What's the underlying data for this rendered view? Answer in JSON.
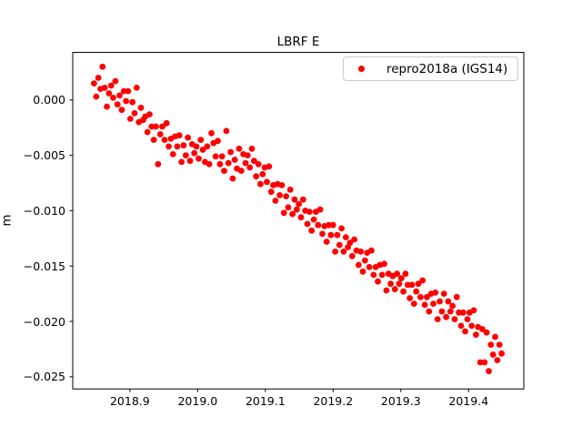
{
  "chart_data": {
    "type": "scatter",
    "title": "LBRF E",
    "xlabel": "",
    "ylabel": "m",
    "grid": false,
    "legend": {
      "position": "upper right",
      "entries": [
        {
          "label": "repro2018a (IGS14)",
          "marker": "dot",
          "color": "#ff0000"
        }
      ]
    },
    "colors": {
      "marker": "#ff0000",
      "spine": "#000000",
      "legend_border": "#cccccc",
      "background": "#ffffff"
    },
    "axis": {
      "xlim": [
        2018.8156,
        2019.4815
      ],
      "ylim": [
        -0.0261,
        0.0043
      ],
      "xticks": [
        {
          "value": 2018.9,
          "label": "2018.9"
        },
        {
          "value": 2019.0,
          "label": "2019.0"
        },
        {
          "value": 2019.1,
          "label": "2019.1"
        },
        {
          "value": 2019.2,
          "label": "2019.2"
        },
        {
          "value": 2019.3,
          "label": "2019.3"
        },
        {
          "value": 2019.4,
          "label": "2019.4"
        }
      ],
      "yticks": [
        {
          "value": 0.0,
          "label": "0.000"
        },
        {
          "value": -0.005,
          "label": "−0.005"
        },
        {
          "value": -0.01,
          "label": "−0.010"
        },
        {
          "value": -0.015,
          "label": "−0.015"
        },
        {
          "value": -0.02,
          "label": "−0.020"
        },
        {
          "value": -0.025,
          "label": "−0.025"
        }
      ]
    },
    "series": [
      {
        "name": "repro2018a (IGS14)",
        "color": "#ff0000",
        "marker_radius_px": 3.4,
        "points": [
          [
            2018.847,
            0.0015
          ],
          [
            2018.8502,
            0.0003
          ],
          [
            2018.8533,
            0.002
          ],
          [
            2018.8565,
            0.001
          ],
          [
            2018.8596,
            0.003
          ],
          [
            2018.8628,
            0.0011
          ],
          [
            2018.8659,
            -0.0006
          ],
          [
            2018.8691,
            0.0006
          ],
          [
            2018.8722,
            0.0013
          ],
          [
            2018.8754,
            0.0002
          ],
          [
            2018.8785,
            0.0017
          ],
          [
            2018.8817,
            -0.0004
          ],
          [
            2018.8848,
            0.0004
          ],
          [
            2018.888,
            -0.0009
          ],
          [
            2018.8911,
            0.0008
          ],
          [
            2018.8943,
            -0.0001
          ],
          [
            2018.8974,
            0.0008
          ],
          [
            2018.9006,
            -0.0017
          ],
          [
            2018.9037,
            -0.0002
          ],
          [
            2018.9069,
            -0.0012
          ],
          [
            2018.91,
            0.0011
          ],
          [
            2018.9132,
            -0.002
          ],
          [
            2018.9163,
            -0.0007
          ],
          [
            2018.9195,
            -0.0018
          ],
          [
            2018.9226,
            -0.0015
          ],
          [
            2018.9258,
            -0.0029
          ],
          [
            2018.9289,
            -0.0013
          ],
          [
            2018.9321,
            -0.0024
          ],
          [
            2018.9352,
            -0.0036
          ],
          [
            2018.9384,
            -0.0024
          ],
          [
            2018.9415,
            -0.0058
          ],
          [
            2018.9447,
            -0.0031
          ],
          [
            2018.9478,
            -0.0024
          ],
          [
            2018.951,
            -0.0036
          ],
          [
            2018.9541,
            -0.0021
          ],
          [
            2018.9573,
            -0.0042
          ],
          [
            2018.9604,
            -0.0035
          ],
          [
            2018.9636,
            -0.0049
          ],
          [
            2018.9667,
            -0.0033
          ],
          [
            2018.9699,
            -0.0042
          ],
          [
            2018.973,
            -0.0032
          ],
          [
            2018.9762,
            -0.0056
          ],
          [
            2018.9793,
            -0.0041
          ],
          [
            2018.9825,
            -0.005
          ],
          [
            2018.9856,
            -0.0034
          ],
          [
            2018.9888,
            -0.0055
          ],
          [
            2018.9919,
            -0.004
          ],
          [
            2018.9951,
            -0.0048
          ],
          [
            2018.9982,
            -0.0042
          ],
          [
            2019.0014,
            -0.0053
          ],
          [
            2019.0045,
            -0.0036
          ],
          [
            2019.0077,
            -0.0045
          ],
          [
            2019.0108,
            -0.0056
          ],
          [
            2019.014,
            -0.0042
          ],
          [
            2019.0171,
            -0.0058
          ],
          [
            2019.0203,
            -0.003
          ],
          [
            2019.0234,
            -0.0039
          ],
          [
            2019.0266,
            -0.0051
          ],
          [
            2019.0297,
            -0.0037
          ],
          [
            2019.0329,
            -0.0058
          ],
          [
            2019.036,
            -0.0051
          ],
          [
            2019.0392,
            -0.0064
          ],
          [
            2019.0423,
            -0.0028
          ],
          [
            2019.0455,
            -0.0057
          ],
          [
            2019.0486,
            -0.0047
          ],
          [
            2019.0518,
            -0.0071
          ],
          [
            2019.0549,
            -0.0054
          ],
          [
            2019.0581,
            -0.0062
          ],
          [
            2019.0612,
            -0.0044
          ],
          [
            2019.0644,
            -0.0064
          ],
          [
            2019.0675,
            -0.0049
          ],
          [
            2019.0707,
            -0.0057
          ],
          [
            2019.0738,
            -0.005
          ],
          [
            2019.077,
            -0.0061
          ],
          [
            2019.0801,
            -0.0044
          ],
          [
            2019.0833,
            -0.0055
          ],
          [
            2019.0864,
            -0.0069
          ],
          [
            2019.0896,
            -0.0058
          ],
          [
            2019.0927,
            -0.0076
          ],
          [
            2019.0959,
            -0.0067
          ],
          [
            2019.099,
            -0.0061
          ],
          [
            2019.1022,
            -0.0074
          ],
          [
            2019.1053,
            -0.006
          ],
          [
            2019.1085,
            -0.0083
          ],
          [
            2019.1116,
            -0.0077
          ],
          [
            2019.1148,
            -0.0091
          ],
          [
            2019.1179,
            -0.0076
          ],
          [
            2019.1211,
            -0.0086
          ],
          [
            2019.1242,
            -0.0077
          ],
          [
            2019.1274,
            -0.0102
          ],
          [
            2019.1305,
            -0.0087
          ],
          [
            2019.1337,
            -0.0097
          ],
          [
            2019.1368,
            -0.0081
          ],
          [
            2019.14,
            -0.0103
          ],
          [
            2019.1431,
            -0.009
          ],
          [
            2019.1463,
            -0.0099
          ],
          [
            2019.1494,
            -0.0094
          ],
          [
            2019.1526,
            -0.0106
          ],
          [
            2019.1557,
            -0.009
          ],
          [
            2019.1589,
            -0.01
          ],
          [
            2019.162,
            -0.0112
          ],
          [
            2019.1652,
            -0.0101
          ],
          [
            2019.1683,
            -0.0118
          ],
          [
            2019.1715,
            -0.0108
          ],
          [
            2019.1746,
            -0.0101
          ],
          [
            2019.1778,
            -0.0113
          ],
          [
            2019.1809,
            -0.0099
          ],
          [
            2019.1841,
            -0.0121
          ],
          [
            2019.1872,
            -0.0114
          ],
          [
            2019.1904,
            -0.0128
          ],
          [
            2019.1935,
            -0.0113
          ],
          [
            2019.1967,
            -0.0122
          ],
          [
            2019.1998,
            -0.0113
          ],
          [
            2019.203,
            -0.0137
          ],
          [
            2019.2061,
            -0.0122
          ],
          [
            2019.2093,
            -0.0131
          ],
          [
            2019.2124,
            -0.0116
          ],
          [
            2019.2156,
            -0.0137
          ],
          [
            2019.2187,
            -0.0124
          ],
          [
            2019.2219,
            -0.0133
          ],
          [
            2019.225,
            -0.0129
          ],
          [
            2019.2282,
            -0.0141
          ],
          [
            2019.2313,
            -0.0126
          ],
          [
            2019.2345,
            -0.0136
          ],
          [
            2019.2376,
            -0.0149
          ],
          [
            2019.2408,
            -0.0137
          ],
          [
            2019.2439,
            -0.0155
          ],
          [
            2019.2471,
            -0.0145
          ],
          [
            2019.2502,
            -0.0138
          ],
          [
            2019.2534,
            -0.0151
          ],
          [
            2019.2565,
            -0.0136
          ],
          [
            2019.2597,
            -0.0158
          ],
          [
            2019.2628,
            -0.0151
          ],
          [
            2019.266,
            -0.0164
          ],
          [
            2019.2691,
            -0.0149
          ],
          [
            2019.2723,
            -0.0158
          ],
          [
            2019.2754,
            -0.0148
          ],
          [
            2019.2786,
            -0.0172
          ],
          [
            2019.2817,
            -0.0157
          ],
          [
            2019.2849,
            -0.0166
          ],
          [
            2019.288,
            -0.0159
          ],
          [
            2019.2912,
            -0.0171
          ],
          [
            2019.2943,
            -0.0157
          ],
          [
            2019.2975,
            -0.0166
          ],
          [
            2019.3006,
            -0.0161
          ],
          [
            2019.3038,
            -0.0173
          ],
          [
            2019.3069,
            -0.0157
          ],
          [
            2019.3101,
            -0.0167
          ],
          [
            2019.3132,
            -0.0179
          ],
          [
            2019.3164,
            -0.0167
          ],
          [
            2019.3195,
            -0.0184
          ],
          [
            2019.3227,
            -0.0173
          ],
          [
            2019.3258,
            -0.0166
          ],
          [
            2019.329,
            -0.0178
          ],
          [
            2019.3321,
            -0.0163
          ],
          [
            2019.3353,
            -0.0185
          ],
          [
            2019.3384,
            -0.0178
          ],
          [
            2019.3416,
            -0.0191
          ],
          [
            2019.3447,
            -0.0175
          ],
          [
            2019.3479,
            -0.0184
          ],
          [
            2019.351,
            -0.0174
          ],
          [
            2019.3542,
            -0.0198
          ],
          [
            2019.3573,
            -0.0182
          ],
          [
            2019.3605,
            -0.0191
          ],
          [
            2019.3636,
            -0.0175
          ],
          [
            2019.3668,
            -0.0196
          ],
          [
            2019.3699,
            -0.0182
          ],
          [
            2019.3731,
            -0.0191
          ],
          [
            2019.3762,
            -0.0186
          ],
          [
            2019.3794,
            -0.0198
          ],
          [
            2019.3825,
            -0.0178
          ],
          [
            2019.3857,
            -0.0192
          ],
          [
            2019.3888,
            -0.0204
          ],
          [
            2019.392,
            -0.0192
          ],
          [
            2019.3951,
            -0.0209
          ],
          [
            2019.3983,
            -0.0198
          ],
          [
            2019.4014,
            -0.0192
          ],
          [
            2019.4046,
            -0.0204
          ],
          [
            2019.4077,
            -0.019
          ],
          [
            2019.4109,
            -0.0212
          ],
          [
            2019.414,
            -0.0205
          ],
          [
            2019.4172,
            -0.0237
          ],
          [
            2019.4203,
            -0.0207
          ],
          [
            2019.4235,
            -0.0237
          ],
          [
            2019.4266,
            -0.021
          ],
          [
            2019.4298,
            -0.0245
          ],
          [
            2019.4329,
            -0.0221
          ],
          [
            2019.4361,
            -0.023
          ],
          [
            2019.4392,
            -0.0214
          ],
          [
            2019.4424,
            -0.0235
          ],
          [
            2019.4455,
            -0.0221
          ],
          [
            2019.4487,
            -0.0229
          ]
        ]
      }
    ]
  }
}
